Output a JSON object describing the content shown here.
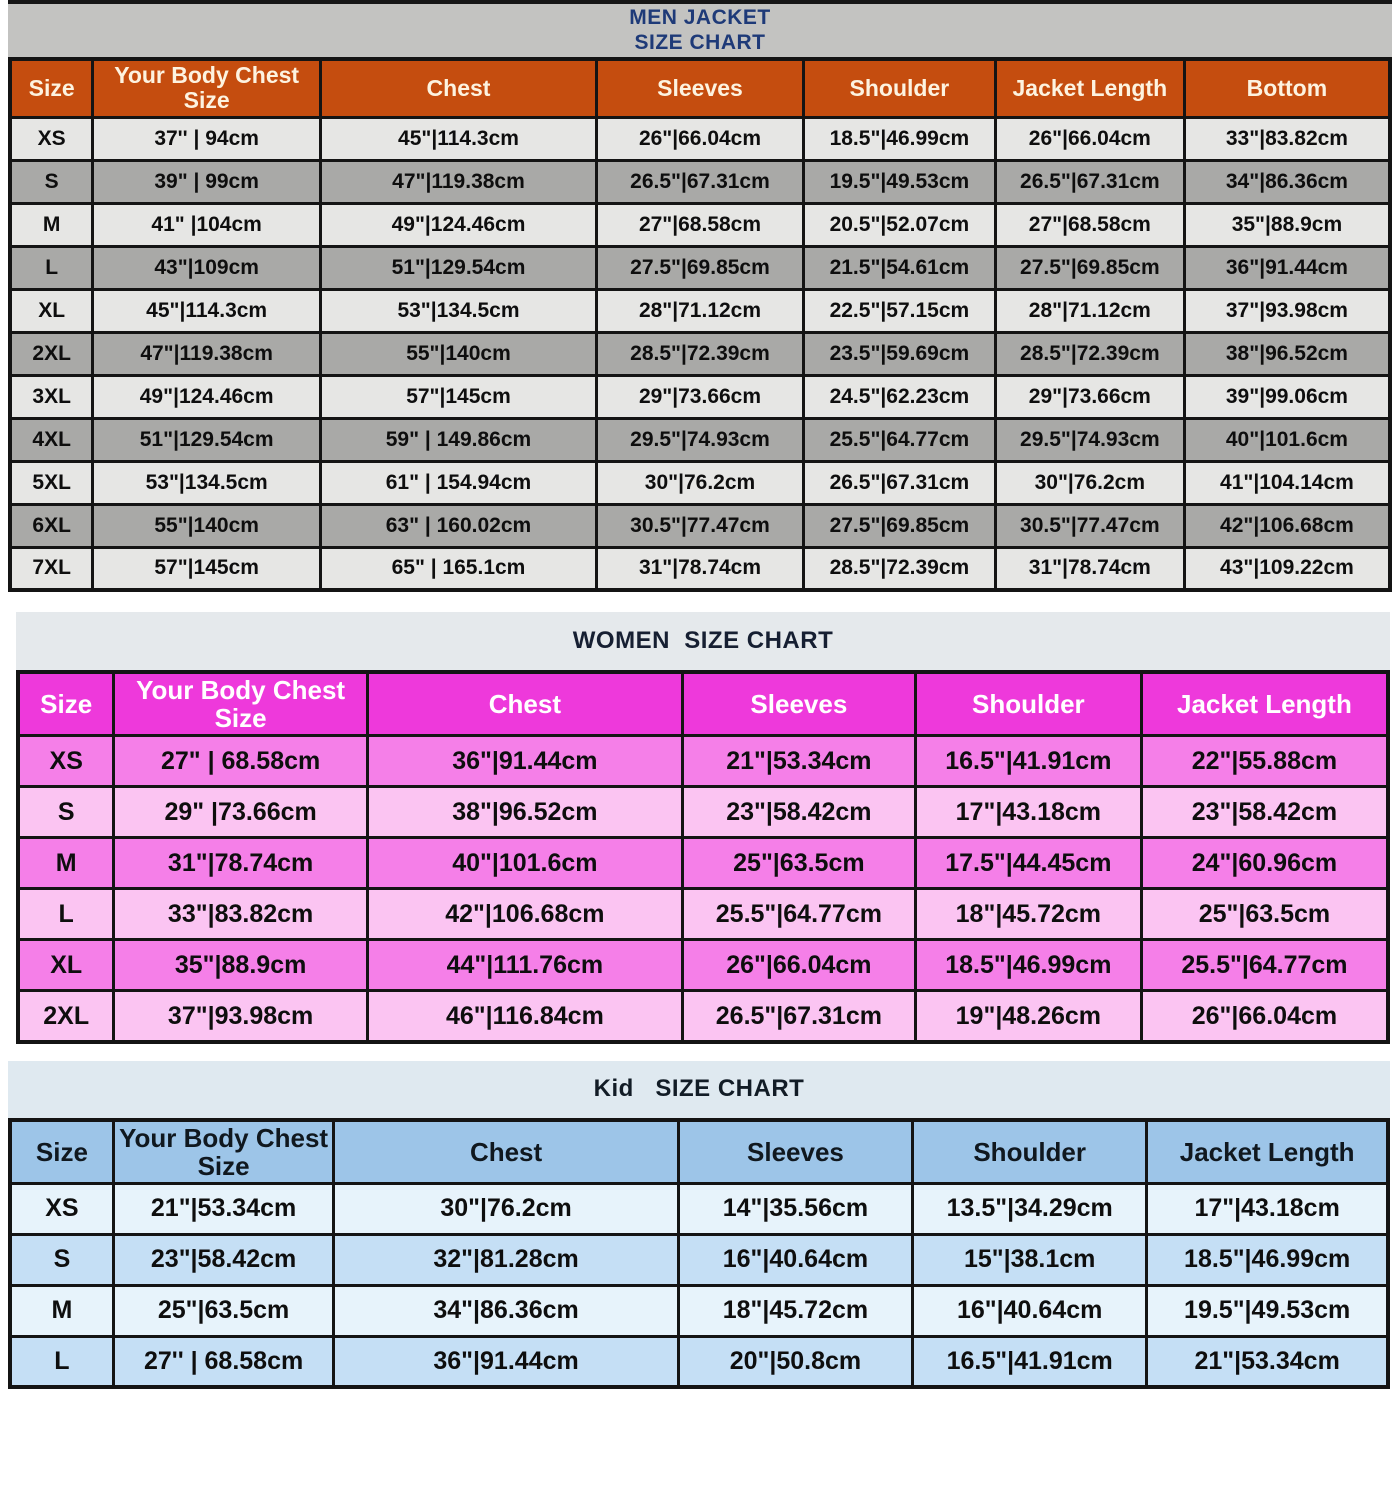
{
  "chart_data": [
    {
      "type": "table",
      "id": "men",
      "title_lines": [
        "MEN JACKET",
        "SIZE CHART"
      ],
      "columns": [
        "Size",
        "Your Body Chest Size",
        "Chest",
        "Sleeves",
        "Shoulder",
        "Jacket Length",
        "Bottom"
      ],
      "rows": [
        [
          "XS",
          "37'' | 94cm",
          "45\"|114.3cm",
          "26\"|66.04cm",
          "18.5\"|46.99cm",
          "26\"|66.04cm",
          "33\"|83.82cm"
        ],
        [
          "S",
          "39\" | 99cm",
          "47\"|119.38cm",
          "26.5\"|67.31cm",
          "19.5\"|49.53cm",
          "26.5\"|67.31cm",
          "34\"|86.36cm"
        ],
        [
          "M",
          "41\" |104cm",
          "49\"|124.46cm",
          "27\"|68.58cm",
          "20.5\"|52.07cm",
          "27\"|68.58cm",
          "35\"|88.9cm"
        ],
        [
          "L",
          "43\"|109cm",
          "51\"|129.54cm",
          "27.5\"|69.85cm",
          "21.5\"|54.61cm",
          "27.5\"|69.85cm",
          "36\"|91.44cm"
        ],
        [
          "XL",
          "45\"|114.3cm",
          "53\"|134.5cm",
          "28\"|71.12cm",
          "22.5\"|57.15cm",
          "28\"|71.12cm",
          "37\"|93.98cm"
        ],
        [
          "2XL",
          "47\"|119.38cm",
          "55\"|140cm",
          "28.5\"|72.39cm",
          "23.5\"|59.69cm",
          "28.5\"|72.39cm",
          "38\"|96.52cm"
        ],
        [
          "3XL",
          "49\"|124.46cm",
          "57\"|145cm",
          "29\"|73.66cm",
          "24.5\"|62.23cm",
          "29\"|73.66cm",
          "39\"|99.06cm"
        ],
        [
          "4XL",
          "51\"|129.54cm",
          "59\" | 149.86cm",
          "29.5\"|74.93cm",
          "25.5\"|64.77cm",
          "29.5\"|74.93cm",
          "40\"|101.6cm"
        ],
        [
          "5XL",
          "53\"|134.5cm",
          "61\" | 154.94cm",
          "30\"|76.2cm",
          "26.5\"|67.31cm",
          "30\"|76.2cm",
          "41\"|104.14cm"
        ],
        [
          "6XL",
          "55\"|140cm",
          "63\" | 160.02cm",
          "30.5\"|77.47cm",
          "27.5\"|69.85cm",
          "30.5\"|77.47cm",
          "42\"|106.68cm"
        ],
        [
          "7XL",
          "57\"|145cm",
          "65\" | 165.1cm",
          "31\"|78.74cm",
          "28.5\"|72.39cm",
          "31\"|78.74cm",
          "43\"|109.22cm"
        ]
      ],
      "colors": {
        "band_bg": "#c3c3c1",
        "title_text": "#1e3a78",
        "header_bg": "#c54d0f",
        "header_text": "#fdf3e0",
        "row_odd": "#e6e6e4",
        "row_even": "#a9a9a7"
      }
    },
    {
      "type": "table",
      "id": "women",
      "title_lines": [
        "WOMEN  SIZE CHART"
      ],
      "columns": [
        "Size",
        "Your Body Chest Size",
        "Chest",
        "Sleeves",
        "Shoulder",
        "Jacket Length"
      ],
      "rows": [
        [
          "XS",
          "27\" | 68.58cm",
          "36\"|91.44cm",
          "21\"|53.34cm",
          "16.5\"|41.91cm",
          "22\"|55.88cm"
        ],
        [
          "S",
          "29\" |73.66cm",
          "38\"|96.52cm",
          "23\"|58.42cm",
          "17\"|43.18cm",
          "23\"|58.42cm"
        ],
        [
          "M",
          "31\"|78.74cm",
          "40\"|101.6cm",
          "25\"|63.5cm",
          "17.5\"|44.45cm",
          "24\"|60.96cm"
        ],
        [
          "L",
          "33\"|83.82cm",
          "42\"|106.68cm",
          "25.5\"|64.77cm",
          "18\"|45.72cm",
          "25\"|63.5cm"
        ],
        [
          "XL",
          "35\"|88.9cm",
          "44\"|111.76cm",
          "26\"|66.04cm",
          "18.5\"|46.99cm",
          "25.5\"|64.77cm"
        ],
        [
          "2XL",
          "37\"|93.98cm",
          "46\"|116.84cm",
          "26.5\"|67.31cm",
          "19\"|48.26cm",
          "26\"|66.04cm"
        ]
      ],
      "colors": {
        "band_bg": "#e5e9ec",
        "title_text": "#161f32",
        "header_bg": "#ee39db",
        "header_text": "#ffffff",
        "row_odd": "#f57fe8",
        "row_even": "#fbc4f2"
      }
    },
    {
      "type": "table",
      "id": "kid",
      "title_lines": [
        "Kid   SIZE CHART"
      ],
      "columns": [
        "Size",
        "Your Body Chest Size",
        "Chest",
        "Sleeves",
        "Shoulder",
        "Jacket Length"
      ],
      "rows": [
        [
          "XS",
          "21\"|53.34cm",
          "30\"|76.2cm",
          "14\"|35.56cm",
          "13.5\"|34.29cm",
          "17\"|43.18cm"
        ],
        [
          "S",
          "23\"|58.42cm",
          "32\"|81.28cm",
          "16\"|40.64cm",
          "15\"|38.1cm",
          "18.5\"|46.99cm"
        ],
        [
          "M",
          "25\"|63.5cm",
          "34\"|86.36cm",
          "18\"|45.72cm",
          "16\"|40.64cm",
          "19.5\"|49.53cm"
        ],
        [
          "L",
          "27'' | 68.58cm",
          "36\"|91.44cm",
          "20\"|50.8cm",
          "16.5\"|41.91cm",
          "21\"|53.34cm"
        ]
      ],
      "colors": {
        "band_bg": "#dfe9f0",
        "title_text": "#121c26",
        "header_bg": "#9dc5e8",
        "header_text": "#10181f",
        "row_odd": "#e7f3fb",
        "row_even": "#c5dff5"
      }
    }
  ]
}
